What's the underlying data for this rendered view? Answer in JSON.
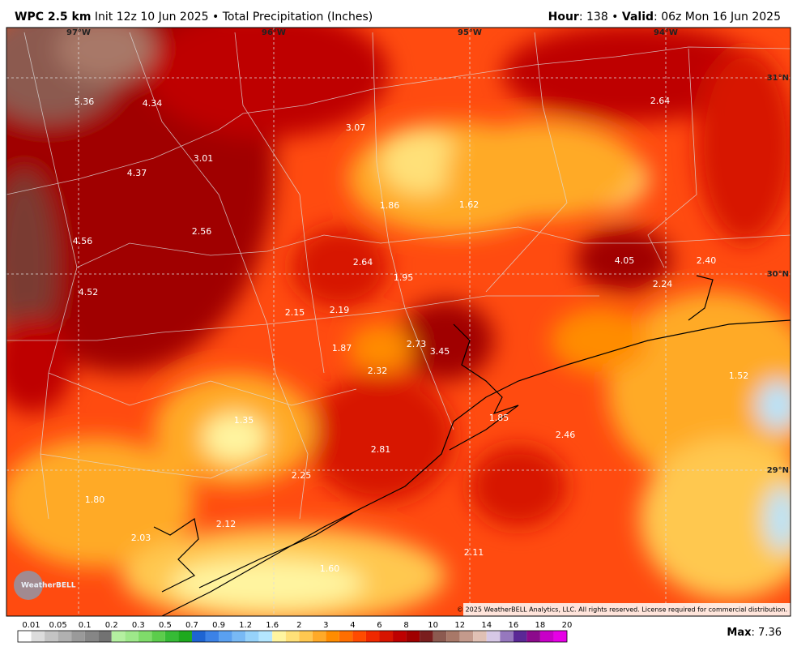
{
  "header": {
    "left": [
      {
        "text": "WPC 2.5 km",
        "bold": true
      },
      {
        "text": " Init 12z 10 Jun 2025 • Total Precipitation (Inches)",
        "bold": false
      }
    ],
    "right": [
      {
        "text": "Hour",
        "bold": true
      },
      {
        "text": ": 138 • ",
        "bold": false
      },
      {
        "text": "Valid",
        "bold": true
      },
      {
        "text": ": 06z Mon 16 Jun 2025",
        "bold": false
      }
    ]
  },
  "lon_labels": [
    "97°W",
    "96°W",
    "95°W",
    "94°W"
  ],
  "lat_labels": [
    "31°N",
    "30°N",
    "29°N"
  ],
  "point_values": [
    "5.36",
    "4.34",
    "3.07",
    "2.64",
    "4.37",
    "3.01",
    "1.86",
    "1.62",
    "4.56",
    "2.56",
    "2.64",
    "1.95",
    "4.05",
    "2.40",
    "2.24",
    "4.52",
    "2.15",
    "2.19",
    "1.87",
    "2.73",
    "3.45",
    "2.32",
    "1.52",
    "1.35",
    "1.85",
    "2.46",
    "2.81",
    "2.25",
    "1.80",
    "2.12",
    "2.03",
    "2.11",
    "1.60"
  ],
  "copyright": "© 2025 WeatherBELL Analytics, LLC. All rights reserved. License required for commercial distribution.",
  "logo": "WeatherBELL",
  "colorbar": {
    "labels": [
      "0.01",
      "0.05",
      "0.1",
      "0.2",
      "0.3",
      "0.5",
      "0.7",
      "0.9",
      "1.2",
      "1.6",
      "2",
      "3",
      "4",
      "6",
      "8",
      "10",
      "12",
      "14",
      "16",
      "18",
      "20"
    ],
    "colors": [
      "#ffffff",
      "#dcdcdc",
      "#c4c4c4",
      "#b0b0b0",
      "#9a9a9a",
      "#868686",
      "#727272",
      "#b4f0a0",
      "#9ee88a",
      "#7fdc6a",
      "#5ccd4c",
      "#36bb36",
      "#1ea91e",
      "#1e64d2",
      "#3c82e6",
      "#5aa0f0",
      "#78b9f5",
      "#96d2fa",
      "#b4e6ff",
      "#fff5a0",
      "#ffe078",
      "#ffc850",
      "#ffaa28",
      "#ff8c00",
      "#ff6e00",
      "#ff4b00",
      "#f02800",
      "#d71400",
      "#be0000",
      "#a00000",
      "#7a1e1e",
      "#8c5a50",
      "#a87868",
      "#c49a8c",
      "#e0c0b4",
      "#d7c8e6",
      "#9678be",
      "#5a2896",
      "#8c0a8c",
      "#c800c8",
      "#e600e6"
    ]
  },
  "max": [
    {
      "text": "Max",
      "bold": true
    },
    {
      "text": ": 7.36",
      "bold": false
    }
  ]
}
